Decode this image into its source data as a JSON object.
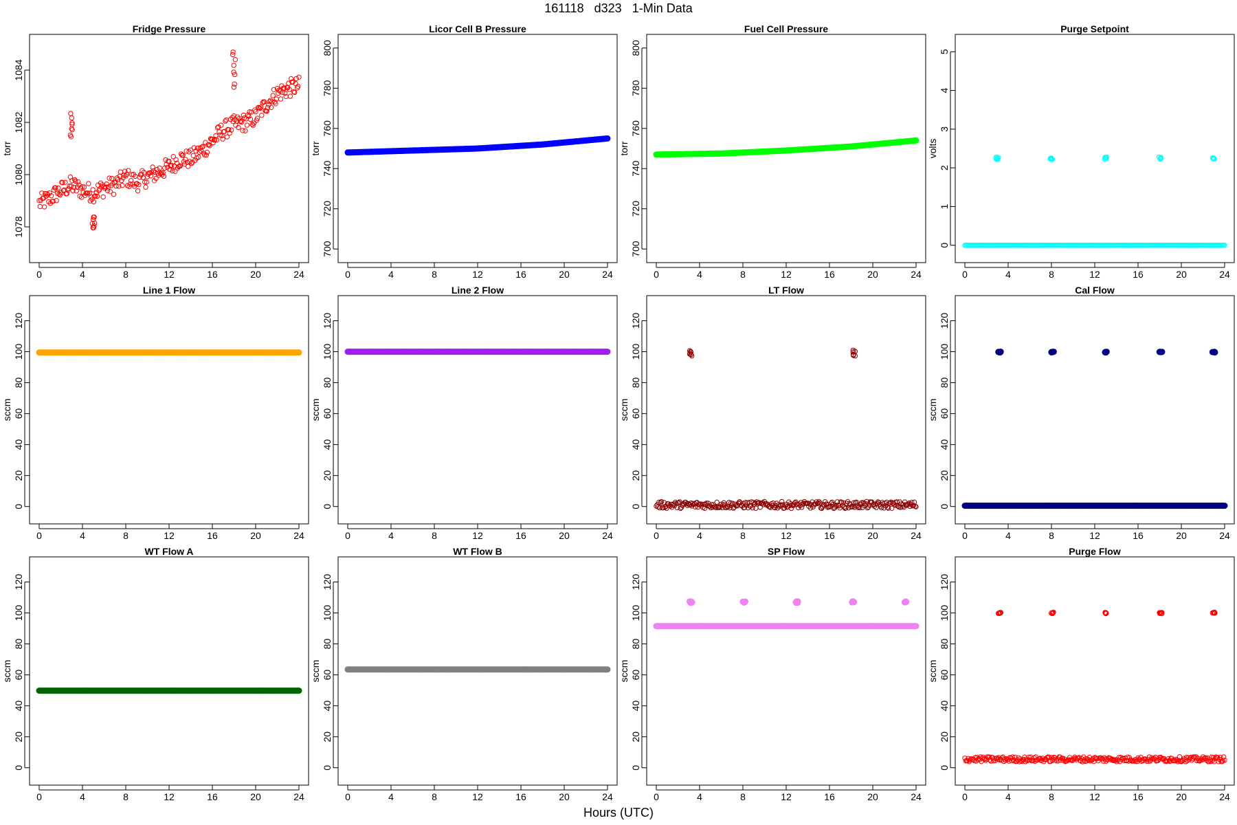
{
  "page": {
    "title": "161118   d323   1-Min Data",
    "xlabel": "Hours (UTC)"
  },
  "chart_data": [
    {
      "type": "scatter",
      "title": "Fridge Pressure",
      "ylabel": "torr",
      "xlabel": "",
      "xlim": [
        0,
        24
      ],
      "ylim": [
        1077,
        1085
      ],
      "xticks": [
        0,
        4,
        8,
        12,
        16,
        20,
        24
      ],
      "yticks": [
        1078,
        1080,
        1082,
        1084
      ],
      "color": "#ff0000",
      "marker": "open-circle",
      "series": [
        {
          "x": [
            0,
            1,
            2,
            3,
            4,
            5,
            6,
            7,
            8,
            9,
            10,
            11,
            12,
            13,
            14,
            15,
            16,
            17,
            18,
            19,
            20,
            21,
            22,
            23,
            24
          ],
          "y": [
            1078.9,
            1079.1,
            1079.4,
            1079.6,
            1079.4,
            1079.3,
            1079.5,
            1079.6,
            1079.9,
            1079.7,
            1079.9,
            1080.1,
            1080.3,
            1080.6,
            1080.6,
            1080.9,
            1081.3,
            1081.7,
            1081.9,
            1082.0,
            1082.2,
            1082.7,
            1083.1,
            1083.3,
            1083.4
          ],
          "spread": 0.35,
          "spikes": [
            {
              "x": 3.0,
              "y": [
                1081.4,
                1082.5
              ]
            },
            {
              "x": 5.0,
              "y": [
                1077.1,
                1078.4
              ]
            },
            {
              "x": 18.0,
              "y": [
                1083.3,
                1084.7
              ]
            }
          ]
        }
      ]
    },
    {
      "type": "scatter",
      "title": "Licor Cell B Pressure",
      "ylabel": "torr",
      "xlabel": "",
      "xlim": [
        0,
        24
      ],
      "ylim": [
        698,
        802
      ],
      "xticks": [
        0,
        4,
        8,
        12,
        16,
        20,
        24
      ],
      "yticks": [
        700,
        720,
        740,
        760,
        780,
        800
      ],
      "color": "#0000ff",
      "marker": "filled",
      "series": [
        {
          "x": [
            0,
            6,
            12,
            18,
            24
          ],
          "y": [
            748,
            749,
            750,
            752,
            755
          ],
          "spread": 0
        }
      ]
    },
    {
      "type": "scatter",
      "title": "Fuel Cell Pressure",
      "ylabel": "torr",
      "xlabel": "",
      "xlim": [
        0,
        24
      ],
      "ylim": [
        698,
        802
      ],
      "xticks": [
        0,
        4,
        8,
        12,
        16,
        20,
        24
      ],
      "yticks": [
        700,
        720,
        740,
        760,
        780,
        800
      ],
      "color": "#00ff00",
      "marker": "filled",
      "series": [
        {
          "x": [
            0,
            6,
            12,
            18,
            24
          ],
          "y": [
            747,
            747.5,
            749,
            751,
            754
          ],
          "spread": 0
        }
      ]
    },
    {
      "type": "scatter",
      "title": "Purge Setpoint",
      "ylabel": "volts",
      "xlabel": "",
      "xlim": [
        0,
        24
      ],
      "ylim": [
        -0.2,
        5.2
      ],
      "xticks": [
        0,
        4,
        8,
        12,
        16,
        20,
        24
      ],
      "yticks": [
        0,
        1,
        2,
        3,
        4,
        5
      ],
      "color": "#00ffff",
      "marker": "open-circle",
      "series": [
        {
          "x": [
            0,
            24
          ],
          "y": [
            0,
            0
          ],
          "spread": 0,
          "solid": true,
          "spikes": [
            {
              "x": 3.0,
              "y": [
                2.22,
                2.28
              ]
            },
            {
              "x": 8.0,
              "y": [
                2.22,
                2.28
              ]
            },
            {
              "x": 13.0,
              "y": [
                2.22,
                2.28
              ]
            },
            {
              "x": 18.0,
              "y": [
                2.22,
                2.28
              ]
            },
            {
              "x": 23.0,
              "y": [
                2.22,
                2.28
              ]
            }
          ]
        }
      ]
    },
    {
      "type": "scatter",
      "title": "Line 1 Flow",
      "ylabel": "sccm",
      "xlabel": "",
      "xlim": [
        0,
        24
      ],
      "ylim": [
        -5,
        130
      ],
      "xticks": [
        0,
        4,
        8,
        12,
        16,
        20,
        24
      ],
      "yticks": [
        0,
        20,
        40,
        60,
        80,
        100,
        120
      ],
      "color": "#ffa500",
      "marker": "filled",
      "series": [
        {
          "x": [
            0,
            24
          ],
          "y": [
            99.5,
            99.5
          ],
          "spread": 0
        }
      ]
    },
    {
      "type": "scatter",
      "title": "Line 2 Flow",
      "ylabel": "sccm",
      "xlabel": "",
      "xlim": [
        0,
        24
      ],
      "ylim": [
        -5,
        130
      ],
      "xticks": [
        0,
        4,
        8,
        12,
        16,
        20,
        24
      ],
      "yticks": [
        0,
        20,
        40,
        60,
        80,
        100,
        120
      ],
      "color": "#a020f0",
      "marker": "filled",
      "series": [
        {
          "x": [
            0,
            24
          ],
          "y": [
            100,
            100
          ],
          "spread": 0
        }
      ]
    },
    {
      "type": "scatter",
      "title": "LT Flow",
      "ylabel": "sccm",
      "xlabel": "",
      "xlim": [
        0,
        24
      ],
      "ylim": [
        -5,
        130
      ],
      "xticks": [
        0,
        4,
        8,
        12,
        16,
        20,
        24
      ],
      "yticks": [
        0,
        20,
        40,
        60,
        80,
        100,
        120
      ],
      "color": "#8b0000",
      "marker": "open-circle",
      "series": [
        {
          "x": [
            0,
            24
          ],
          "y": [
            1,
            1
          ],
          "spread": 2.2,
          "spikes": [
            {
              "x": 3.2,
              "y": [
                97,
                101
              ]
            },
            {
              "x": 18.3,
              "y": [
                97,
                101
              ]
            }
          ]
        }
      ]
    },
    {
      "type": "scatter",
      "title": "Cal Flow",
      "ylabel": "sccm",
      "xlabel": "",
      "xlim": [
        0,
        24
      ],
      "ylim": [
        -5,
        130
      ],
      "xticks": [
        0,
        4,
        8,
        12,
        16,
        20,
        24
      ],
      "yticks": [
        0,
        20,
        40,
        60,
        80,
        100,
        120
      ],
      "color": "#000080",
      "marker": "filled",
      "series": [
        {
          "x": [
            0,
            24
          ],
          "y": [
            0.5,
            0.5
          ],
          "spread": 0,
          "spikes": [
            {
              "x": 3.2,
              "y": [
                99.5,
                100
              ]
            },
            {
              "x": 8.1,
              "y": [
                99.5,
                100
              ]
            },
            {
              "x": 13.0,
              "y": [
                99.5,
                100
              ]
            },
            {
              "x": 18.1,
              "y": [
                99.5,
                100
              ]
            },
            {
              "x": 23.0,
              "y": [
                99.5,
                100
              ]
            }
          ]
        }
      ]
    },
    {
      "type": "scatter",
      "title": "WT Flow A",
      "ylabel": "sccm",
      "xlabel": "",
      "xlim": [
        0,
        24
      ],
      "ylim": [
        -5,
        130
      ],
      "xticks": [
        0,
        4,
        8,
        12,
        16,
        20,
        24
      ],
      "yticks": [
        0,
        20,
        40,
        60,
        80,
        100,
        120
      ],
      "color": "#006400",
      "marker": "filled",
      "series": [
        {
          "x": [
            0,
            24
          ],
          "y": [
            49.8,
            49.8
          ],
          "spread": 0
        }
      ]
    },
    {
      "type": "scatter",
      "title": "WT Flow B",
      "ylabel": "sccm",
      "xlabel": "",
      "xlim": [
        0,
        24
      ],
      "ylim": [
        -5,
        130
      ],
      "xticks": [
        0,
        4,
        8,
        12,
        16,
        20,
        24
      ],
      "yticks": [
        0,
        20,
        40,
        60,
        80,
        100,
        120
      ],
      "color": "#808080",
      "marker": "filled",
      "series": [
        {
          "x": [
            0,
            24
          ],
          "y": [
            63.5,
            63.5
          ],
          "spread": 0
        }
      ]
    },
    {
      "type": "scatter",
      "title": "SP Flow",
      "ylabel": "sccm",
      "xlabel": "",
      "xlim": [
        0,
        24
      ],
      "ylim": [
        -5,
        130
      ],
      "xticks": [
        0,
        4,
        8,
        12,
        16,
        20,
        24
      ],
      "yticks": [
        0,
        20,
        40,
        60,
        80,
        100,
        120
      ],
      "color": "#ee82ee",
      "marker": "filled",
      "series": [
        {
          "x": [
            0,
            24
          ],
          "y": [
            91.5,
            91.5
          ],
          "spread": 0,
          "spikes": [
            {
              "x": 3.2,
              "y": [
                106.5,
                107.5
              ]
            },
            {
              "x": 8.1,
              "y": [
                106.5,
                107.5
              ]
            },
            {
              "x": 13.0,
              "y": [
                106.5,
                107.5
              ]
            },
            {
              "x": 18.2,
              "y": [
                106.5,
                107.5
              ]
            },
            {
              "x": 23.0,
              "y": [
                106.5,
                107.5
              ]
            }
          ]
        }
      ]
    },
    {
      "type": "scatter",
      "title": "Purge Flow",
      "ylabel": "sccm",
      "xlabel": "",
      "xlim": [
        0,
        24
      ],
      "ylim": [
        -5,
        130
      ],
      "xticks": [
        0,
        4,
        8,
        12,
        16,
        20,
        24
      ],
      "yticks": [
        0,
        20,
        40,
        60,
        80,
        100,
        120
      ],
      "color": "#ff0000",
      "marker": "open-circle",
      "series": [
        {
          "x": [
            0,
            24
          ],
          "y": [
            5.5,
            5.5
          ],
          "spread": 1.6,
          "spikes": [
            {
              "x": 3.2,
              "y": [
                99.5,
                100.5
              ]
            },
            {
              "x": 8.1,
              "y": [
                99.5,
                100.5
              ]
            },
            {
              "x": 13.0,
              "y": [
                99.5,
                100.5
              ]
            },
            {
              "x": 18.1,
              "y": [
                99.5,
                100.5
              ]
            },
            {
              "x": 23.0,
              "y": [
                99.5,
                100.5
              ]
            }
          ]
        }
      ]
    }
  ]
}
